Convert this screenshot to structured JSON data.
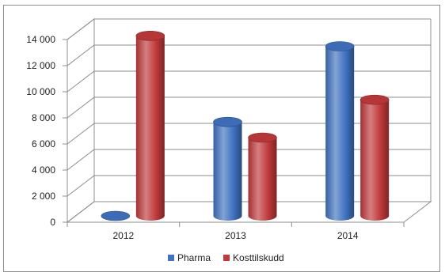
{
  "chart_data": {
    "type": "bar",
    "title": "",
    "xlabel": "",
    "ylabel": "",
    "categories": [
      "2012",
      "2013",
      "2014"
    ],
    "series": [
      {
        "name": "Pharma",
        "values": [
          0,
          7200,
          13000
        ],
        "color": "#3F72C0"
      },
      {
        "name": "Kosttilskudd",
        "values": [
          13800,
          6000,
          8900
        ],
        "color": "#C0393B"
      }
    ],
    "ylim": [
      0,
      14000
    ],
    "yticks": [
      0,
      2000,
      4000,
      6000,
      8000,
      10000,
      12000,
      14000
    ],
    "ytick_labels": [
      "0",
      "2 000",
      "4 000",
      "6 000",
      "8 000",
      "10 000",
      "12 000",
      "14 000"
    ],
    "grid": true,
    "legend_position": "bottom",
    "style": "3d-cylinder"
  }
}
